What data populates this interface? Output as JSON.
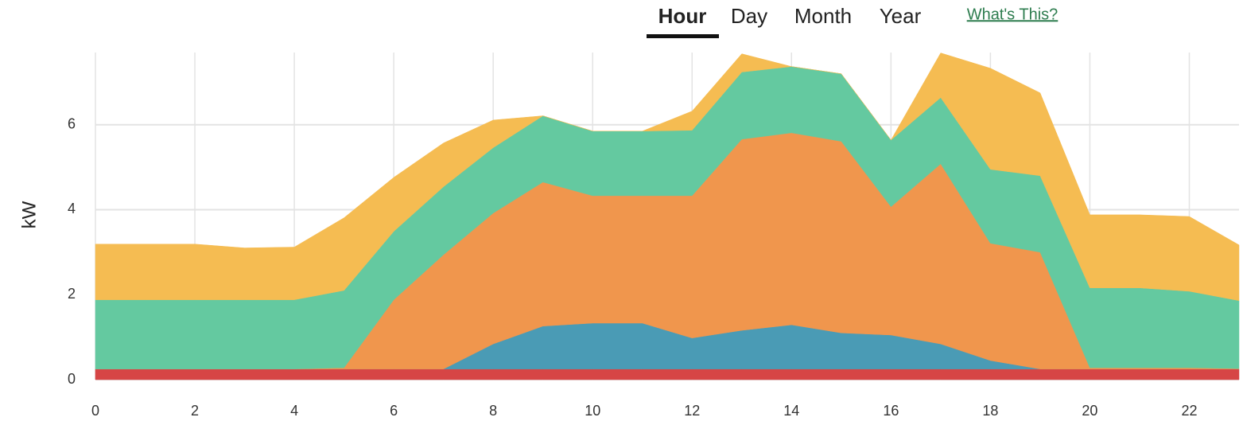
{
  "nav": {
    "tabs": [
      "Hour",
      "Day",
      "Month",
      "Year"
    ],
    "active": "Hour",
    "link": "What's This?"
  },
  "chart_data": {
    "type": "stacked-area",
    "ylabel": "kW",
    "x": [
      0,
      1,
      2,
      3,
      4,
      5,
      6,
      7,
      8,
      9,
      10,
      11,
      12,
      13,
      14,
      15,
      16,
      17,
      18,
      19,
      20,
      21,
      22,
      23
    ],
    "xlim": [
      0,
      23
    ],
    "xticks": [
      0,
      2,
      4,
      6,
      8,
      10,
      12,
      14,
      16,
      18,
      20,
      22
    ],
    "ylim": [
      0,
      7.7
    ],
    "yticks": [
      0,
      2,
      4,
      6
    ],
    "grid": true,
    "series": [
      {
        "color": "#d64545",
        "values": [
          0.25,
          0.25,
          0.25,
          0.25,
          0.25,
          0.25,
          0.25,
          0.25,
          0.25,
          0.25,
          0.25,
          0.25,
          0.25,
          0.25,
          0.25,
          0.25,
          0.25,
          0.25,
          0.25,
          0.25,
          0.25,
          0.25,
          0.25,
          0.25
        ]
      },
      {
        "color": "#4a9bb5",
        "values": [
          0,
          0,
          0,
          0,
          0,
          0,
          0,
          0,
          0.59,
          1.01,
          1.08,
          1.08,
          0.73,
          0.91,
          1.04,
          0.85,
          0.8,
          0.59,
          0.2,
          0,
          0,
          0,
          0,
          0
        ]
      },
      {
        "color": "#f0964d",
        "values": [
          0,
          0,
          0,
          0,
          0,
          0.03,
          1.63,
          2.69,
          3.08,
          3.39,
          3.0,
          3.0,
          3.35,
          4.5,
          4.52,
          4.51,
          3.02,
          4.24,
          2.76,
          2.75,
          0.03,
          0.03,
          0.03,
          0.01
        ]
      },
      {
        "color": "#64c9a0",
        "values": [
          1.63,
          1.63,
          1.63,
          1.63,
          1.63,
          1.82,
          1.61,
          1.6,
          1.54,
          1.56,
          1.52,
          1.52,
          1.54,
          1.58,
          1.56,
          1.59,
          1.57,
          1.56,
          1.74,
          1.8,
          1.88,
          1.88,
          1.8,
          1.6
        ]
      },
      {
        "color": "#f5bc52",
        "values": [
          1.31,
          1.31,
          1.31,
          1.22,
          1.24,
          1.71,
          1.27,
          1.03,
          0.65,
          0,
          0,
          0,
          0.45,
          0.43,
          0,
          0,
          0,
          1.05,
          2.38,
          1.95,
          1.72,
          1.72,
          1.76,
          1.31
        ]
      }
    ]
  }
}
